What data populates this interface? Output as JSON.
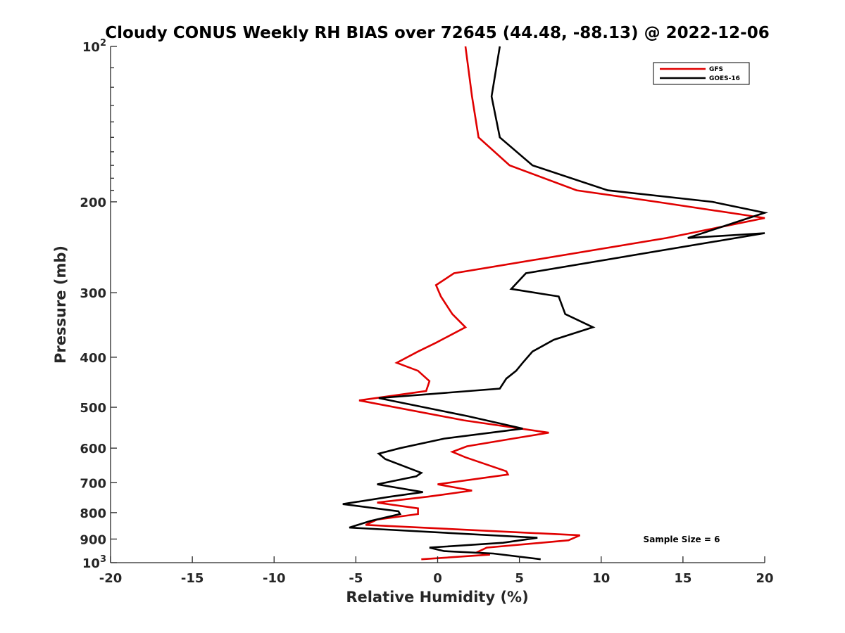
{
  "chart_data": {
    "type": "line",
    "title": "Cloudy CONUS Weekly RH BIAS over 72645 (44.48, -88.13) @ 2022-12-06",
    "xlabel": "Relative Humidity (%)",
    "ylabel": "Pressure (mb)",
    "xlim": [
      -20,
      20
    ],
    "ylim": [
      100,
      1000
    ],
    "y_scale": "log",
    "y_reversed": true,
    "grid": false,
    "legend_position": "top-right",
    "x_ticks": [
      "-20",
      "-15",
      "-10",
      "-5",
      "0",
      "5",
      "10",
      "15",
      "20"
    ],
    "y_ticks": [
      {
        "value": 100,
        "base": "10",
        "exp": "2"
      },
      {
        "value": 200,
        "label": "200"
      },
      {
        "value": 300,
        "label": "300"
      },
      {
        "value": 400,
        "label": "400"
      },
      {
        "value": 500,
        "label": "500"
      },
      {
        "value": 600,
        "label": "600"
      },
      {
        "value": 700,
        "label": "700"
      },
      {
        "value": 800,
        "label": "800"
      },
      {
        "value": 900,
        "label": "900"
      },
      {
        "value": 1000,
        "base": "10",
        "exp": "3"
      }
    ],
    "annotation": "Sample Size = 6",
    "series": [
      {
        "name": "GFS",
        "color": "#e00000",
        "points": [
          [
            1.7,
            100
          ],
          [
            2.1,
            125
          ],
          [
            2.5,
            150
          ],
          [
            4.4,
            170
          ],
          [
            8.5,
            190
          ],
          [
            13.4,
            200
          ],
          [
            20,
            215
          ],
          [
            14,
            235
          ],
          [
            1.0,
            275
          ],
          [
            -0.1,
            290
          ],
          [
            0.2,
            305
          ],
          [
            0.9,
            330
          ],
          [
            1.7,
            350
          ],
          [
            -0.1,
            375
          ],
          [
            -1.2,
            390
          ],
          [
            -2.5,
            410
          ],
          [
            -1.2,
            425
          ],
          [
            -0.5,
            445
          ],
          [
            -0.7,
            465
          ],
          [
            -4.8,
            485
          ],
          [
            1.6,
            530
          ],
          [
            6.8,
            560
          ],
          [
            4.6,
            575
          ],
          [
            1.8,
            595
          ],
          [
            0.9,
            610
          ],
          [
            1.7,
            625
          ],
          [
            4.2,
            665
          ],
          [
            4.3,
            675
          ],
          [
            0.0,
            705
          ],
          [
            2.1,
            725
          ],
          [
            -0.6,
            745
          ],
          [
            -3.7,
            765
          ],
          [
            -1.2,
            785
          ],
          [
            -1.2,
            805
          ],
          [
            -3.7,
            825
          ],
          [
            -4.4,
            845
          ],
          [
            8.7,
            885
          ],
          [
            8.0,
            905
          ],
          [
            3.0,
            935
          ],
          [
            2.4,
            955
          ],
          [
            3.2,
            965
          ],
          [
            -1.0,
            985
          ]
        ]
      },
      {
        "name": "GOES-16",
        "color": "#000000",
        "points": [
          [
            3.8,
            100
          ],
          [
            3.3,
            125
          ],
          [
            3.8,
            150
          ],
          [
            5.8,
            170
          ],
          [
            10.4,
            190
          ],
          [
            16.8,
            200
          ],
          [
            20,
            210
          ],
          [
            15.3,
            235
          ],
          [
            20,
            230
          ],
          [
            5.4,
            275
          ],
          [
            4.5,
            295
          ],
          [
            7.4,
            305
          ],
          [
            7.8,
            330
          ],
          [
            9.5,
            350
          ],
          [
            7.1,
            370
          ],
          [
            5.8,
            390
          ],
          [
            5.2,
            410
          ],
          [
            4.8,
            425
          ],
          [
            4.2,
            440
          ],
          [
            3.8,
            460
          ],
          [
            -3.6,
            480
          ],
          [
            1.8,
            520
          ],
          [
            5.2,
            550
          ],
          [
            0.4,
            575
          ],
          [
            -2.3,
            600
          ],
          [
            -3.6,
            615
          ],
          [
            -3.2,
            630
          ],
          [
            -1.0,
            670
          ],
          [
            -1.3,
            680
          ],
          [
            -3.7,
            705
          ],
          [
            -0.9,
            730
          ],
          [
            -2.9,
            745
          ],
          [
            -5.8,
            770
          ],
          [
            -2.4,
            795
          ],
          [
            -2.3,
            805
          ],
          [
            -4.1,
            830
          ],
          [
            -5.4,
            855
          ],
          [
            6.1,
            895
          ],
          [
            4.0,
            915
          ],
          [
            -0.5,
            935
          ],
          [
            0.4,
            950
          ],
          [
            3.4,
            960
          ],
          [
            6.3,
            985
          ]
        ]
      }
    ]
  }
}
